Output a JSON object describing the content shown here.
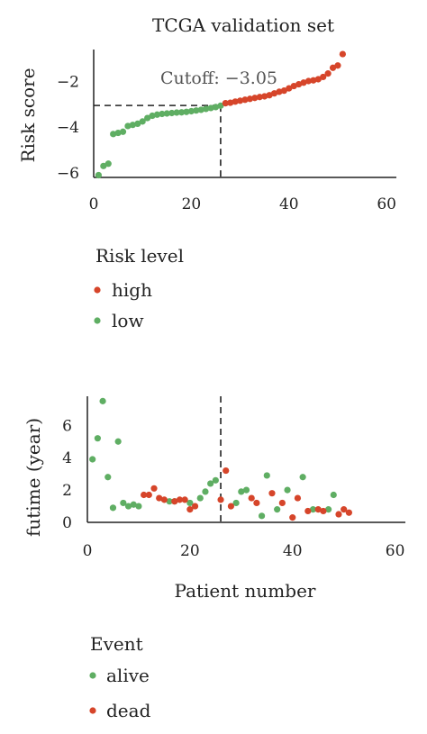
{
  "colors": {
    "high": "#d6452a",
    "low": "#5fae63",
    "alive": "#5fae63",
    "dead": "#d6452a"
  },
  "chart_data": [
    {
      "type": "scatter",
      "title": "TCGA validation set",
      "xlabel": "",
      "ylabel": "Risk score",
      "xlim": [
        0,
        62
      ],
      "ylim": [
        -6.2,
        -0.6
      ],
      "xticks": [
        "0",
        "20",
        "40",
        "60"
      ],
      "yticks": [
        "−2",
        "−4",
        "−6"
      ],
      "cutoff_label": "Cutoff: −3.05",
      "cutoff": {
        "x": 26,
        "y": -3.05
      },
      "grid": false,
      "series": [
        {
          "name": "low",
          "color_key": "low",
          "x": [
            1,
            2,
            3,
            4,
            5,
            6,
            7,
            8,
            9,
            10,
            11,
            12,
            13,
            14,
            15,
            16,
            17,
            18,
            19,
            20,
            21,
            22,
            23,
            24,
            25,
            26
          ],
          "y": [
            -6.1,
            -5.7,
            -5.6,
            -4.3,
            -4.25,
            -4.2,
            -3.95,
            -3.9,
            -3.85,
            -3.75,
            -3.6,
            -3.5,
            -3.45,
            -3.42,
            -3.4,
            -3.38,
            -3.36,
            -3.35,
            -3.33,
            -3.3,
            -3.27,
            -3.24,
            -3.2,
            -3.16,
            -3.12,
            -3.06
          ]
        },
        {
          "name": "high",
          "color_key": "high",
          "x": [
            27,
            28,
            29,
            30,
            31,
            32,
            33,
            34,
            35,
            36,
            37,
            38,
            39,
            40,
            41,
            42,
            43,
            44,
            45,
            46,
            47,
            48,
            49,
            50,
            51
          ],
          "y": [
            -2.95,
            -2.93,
            -2.88,
            -2.84,
            -2.8,
            -2.76,
            -2.72,
            -2.68,
            -2.65,
            -2.6,
            -2.52,
            -2.45,
            -2.4,
            -2.3,
            -2.2,
            -2.12,
            -2.05,
            -1.98,
            -1.95,
            -1.9,
            -1.8,
            -1.65,
            -1.4,
            -1.3,
            -0.8
          ]
        }
      ],
      "legend": {
        "title": "Risk level",
        "items": [
          "high",
          "low"
        ]
      }
    },
    {
      "type": "scatter",
      "title": "",
      "xlabel": "Patient number",
      "ylabel": "futime (year)",
      "xlim": [
        0,
        62
      ],
      "ylim": [
        0,
        7.8
      ],
      "xticks": [
        "0",
        "20",
        "40",
        "60"
      ],
      "yticks": [
        "0",
        "2",
        "4",
        "6"
      ],
      "cutoff": {
        "x": 26
      },
      "grid": false,
      "series": [
        {
          "name": "alive",
          "color_key": "alive",
          "x": [
            1,
            2,
            3,
            4,
            5,
            6,
            7,
            8,
            9,
            10,
            16,
            17,
            20,
            22,
            23,
            24,
            25,
            29,
            30,
            31,
            34,
            35,
            37,
            39,
            42,
            44,
            47,
            48
          ],
          "y": [
            3.9,
            5.2,
            7.5,
            2.8,
            0.9,
            5.0,
            1.2,
            1.0,
            1.1,
            1.0,
            1.3,
            1.3,
            1.2,
            1.5,
            1.9,
            2.4,
            2.6,
            1.2,
            1.9,
            2.0,
            0.4,
            2.9,
            0.8,
            2.0,
            2.8,
            0.8,
            0.8,
            1.7
          ]
        },
        {
          "name": "dead",
          "color_key": "dead",
          "x": [
            11,
            12,
            13,
            14,
            15,
            17,
            18,
            19,
            20,
            21,
            26,
            27,
            28,
            32,
            33,
            36,
            38,
            40,
            41,
            43,
            45,
            46,
            49,
            50,
            51
          ],
          "y": [
            1.7,
            1.7,
            2.1,
            1.5,
            1.4,
            1.3,
            1.4,
            1.4,
            0.8,
            1.0,
            1.4,
            3.2,
            1.0,
            1.5,
            1.2,
            1.8,
            1.2,
            0.3,
            1.5,
            0.7,
            0.8,
            0.7,
            0.5,
            0.8,
            0.6
          ]
        }
      ],
      "legend": {
        "title": "Event",
        "items": [
          "alive",
          "dead"
        ]
      }
    }
  ]
}
